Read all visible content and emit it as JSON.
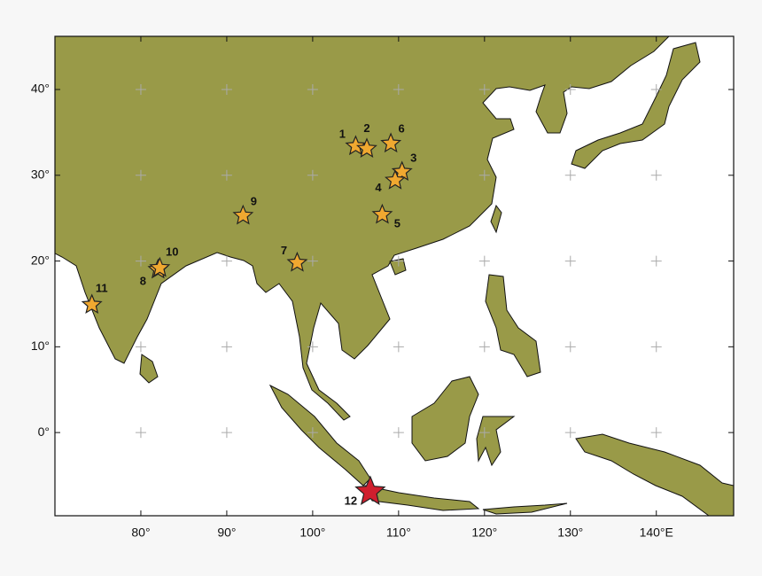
{
  "chart_data": {
    "type": "map",
    "xlim": [
      70,
      149
    ],
    "ylim": [
      -9.7,
      46.2
    ],
    "xticks": [
      {
        "value": 80,
        "label": "80°"
      },
      {
        "value": 90,
        "label": "90°"
      },
      {
        "value": 100,
        "label": "100°"
      },
      {
        "value": 110,
        "label": "110°"
      },
      {
        "value": 120,
        "label": "120°"
      },
      {
        "value": 130,
        "label": "130°"
      },
      {
        "value": 140,
        "label": "140°E"
      }
    ],
    "yticks": [
      {
        "value": 0,
        "label": "0°"
      },
      {
        "value": 10,
        "label": "10°"
      },
      {
        "value": 20,
        "label": "20°"
      },
      {
        "value": 30,
        "label": "30°"
      },
      {
        "value": 40,
        "label": "40°"
      }
    ],
    "grid": true,
    "labels": [
      "1",
      "2",
      "3",
      "4",
      "5",
      "6",
      "7",
      "8",
      "9",
      "10",
      "11",
      "12"
    ],
    "x": [
      105.0,
      106.3,
      110.4,
      109.6,
      108.1,
      109.1,
      98.2,
      82.0,
      91.9,
      82.2,
      74.3,
      106.7
    ],
    "y": [
      33.4,
      33.1,
      30.4,
      29.4,
      25.4,
      33.7,
      19.8,
      19.0,
      25.3,
      19.2,
      14.9,
      -6.9
    ],
    "colors": [
      "#f0a830",
      "#f0a830",
      "#f0a830",
      "#f0a830",
      "#f0a830",
      "#f0a830",
      "#f0a830",
      "#f0a830",
      "#f0a830",
      "#f0a830",
      "#f0a830",
      "#d01f2e"
    ],
    "land_color": "#999a48"
  }
}
